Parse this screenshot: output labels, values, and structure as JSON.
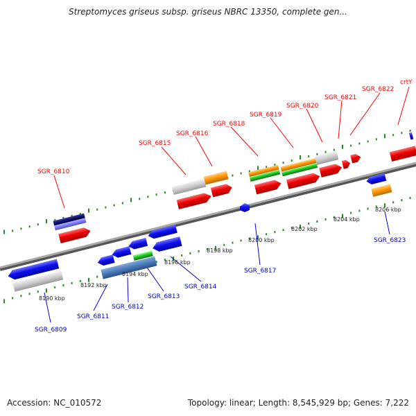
{
  "title": "Streptomyces griseus subsp. griseus NBRC 13350, complete gen...",
  "footer": {
    "accession": "Accession: NC_010572",
    "summary": "Topology: linear; Length: 8,545,929 bp; Genes: 7,222"
  },
  "colors": {
    "top_label": "#ff0000",
    "bottom_label": "#0000cc",
    "tick": "#228b22",
    "axis": "#808080"
  },
  "scale_labels": [
    "8190 kbp",
    "8192 kbp",
    "8194 kbp",
    "8196 kbp",
    "8198 kbp",
    "8200 kbp",
    "8202 kbp",
    "8204 kbp",
    "8206 kbp"
  ],
  "genes_top_strand": [
    "SGR_6810",
    "SGR_6815",
    "SGR_6816",
    "SGR_6818",
    "SGR_6819",
    "SGR_6820",
    "SGR_6821",
    "SGR_6822",
    "crtY"
  ],
  "genes_bottom_strand": [
    "SGR_6809",
    "SGR_6811",
    "SGR_6812",
    "SGR_6813",
    "SGR_6814",
    "SGR_6817",
    "SGR_6823"
  ]
}
